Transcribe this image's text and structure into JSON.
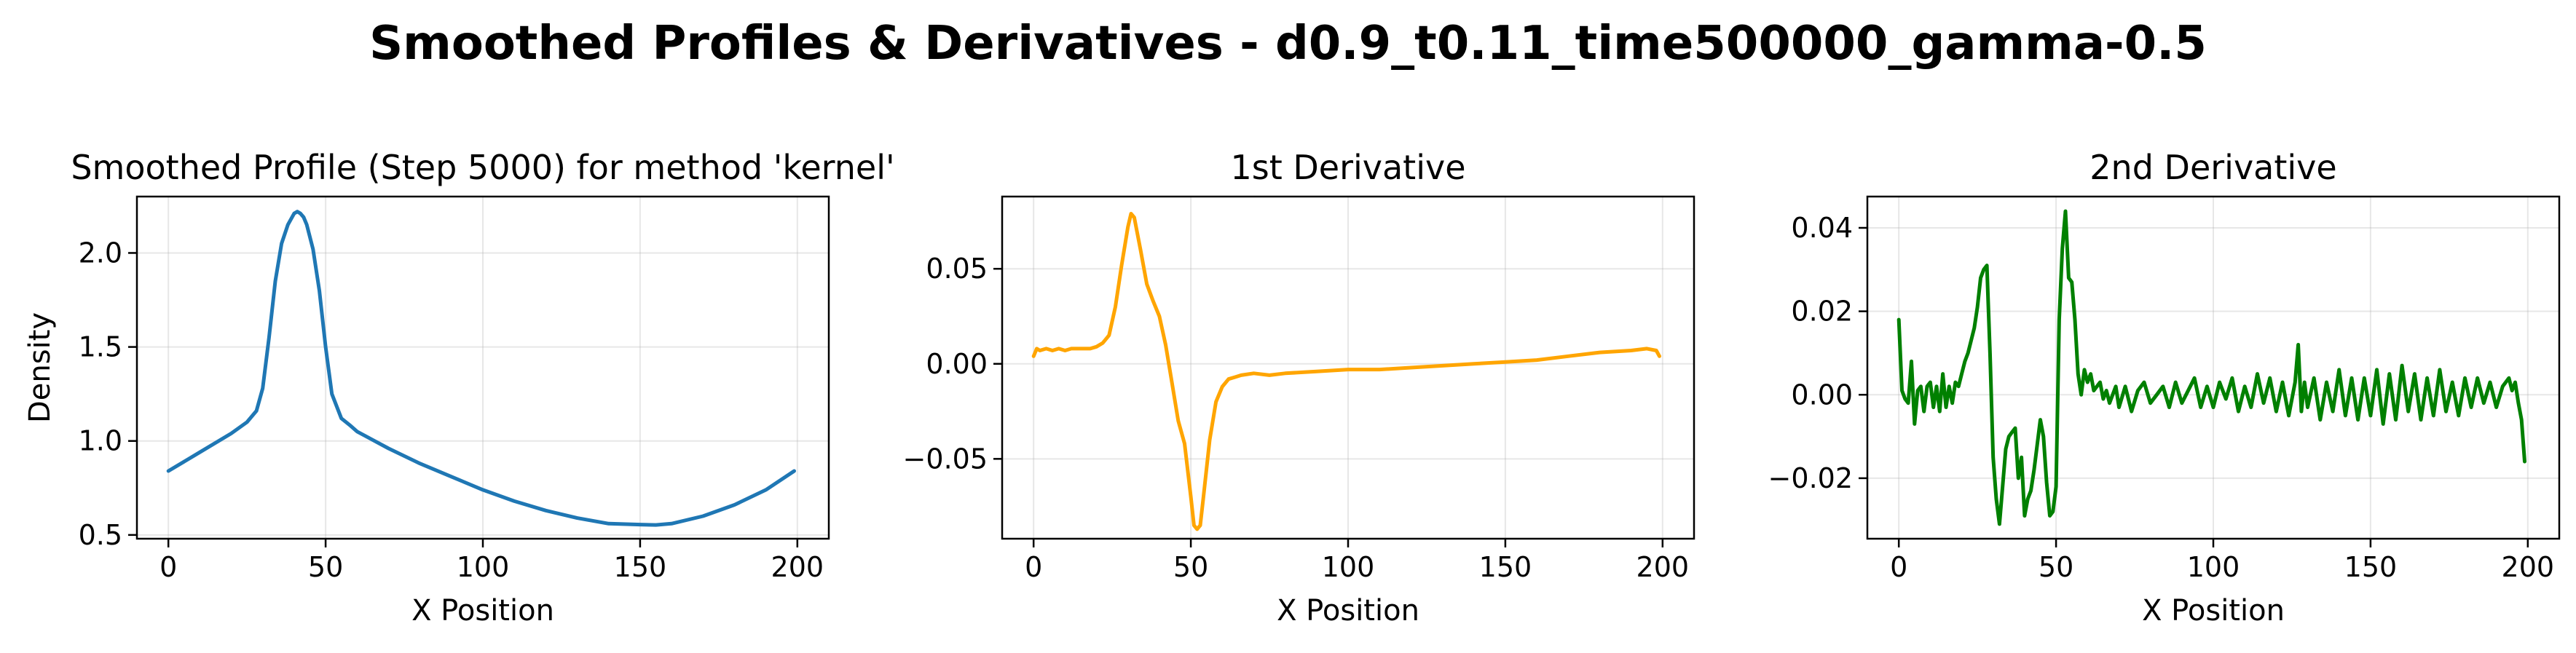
{
  "figure": {
    "title": "Smoothed Profiles & Derivatives - d0.9_t0.11_time500000_gamma-0.5"
  },
  "chart_data": [
    {
      "type": "line",
      "title": "Smoothed Profile (Step 5000) for method 'kernel'",
      "xlabel": "X Position",
      "ylabel": "Density",
      "xlim": [
        -10,
        210
      ],
      "ylim": [
        0.48,
        2.3
      ],
      "xticks": [
        0,
        50,
        100,
        150,
        200
      ],
      "xtick_labels": [
        "0",
        "50",
        "100",
        "150",
        "200"
      ],
      "yticks": [
        0.5,
        1.0,
        1.5,
        2.0
      ],
      "ytick_labels": [
        "0.5",
        "1.0",
        "1.5",
        "2.0"
      ],
      "grid": true,
      "color": "#1f77b4",
      "x": [
        0,
        10,
        20,
        25,
        28,
        30,
        32,
        34,
        36,
        38,
        40,
        41,
        42,
        43,
        44,
        46,
        48,
        50,
        52,
        55,
        58,
        60,
        70,
        80,
        90,
        100,
        110,
        120,
        130,
        140,
        150,
        155,
        160,
        170,
        180,
        190,
        199
      ],
      "y": [
        0.84,
        0.94,
        1.04,
        1.1,
        1.16,
        1.28,
        1.55,
        1.85,
        2.05,
        2.15,
        2.21,
        2.22,
        2.21,
        2.19,
        2.15,
        2.02,
        1.8,
        1.5,
        1.25,
        1.12,
        1.08,
        1.05,
        0.96,
        0.88,
        0.81,
        0.74,
        0.68,
        0.63,
        0.59,
        0.56,
        0.555,
        0.553,
        0.56,
        0.6,
        0.66,
        0.74,
        0.84
      ]
    },
    {
      "type": "line",
      "title": "1st Derivative",
      "xlabel": "X Position",
      "ylabel": "",
      "xlim": [
        -10,
        210
      ],
      "ylim": [
        -0.092,
        0.088
      ],
      "xticks": [
        0,
        50,
        100,
        150,
        200
      ],
      "xtick_labels": [
        "0",
        "50",
        "100",
        "150",
        "200"
      ],
      "yticks": [
        -0.05,
        0.0,
        0.05
      ],
      "ytick_labels": [
        "−0.05",
        "0.00",
        "0.05"
      ],
      "grid": true,
      "color": "#FFA500",
      "x": [
        0,
        1,
        2,
        4,
        6,
        8,
        10,
        12,
        14,
        16,
        18,
        20,
        22,
        24,
        26,
        28,
        30,
        31,
        32,
        34,
        36,
        38,
        40,
        42,
        44,
        46,
        48,
        50,
        51,
        52,
        53,
        54,
        56,
        58,
        60,
        62,
        64,
        66,
        70,
        75,
        80,
        90,
        100,
        110,
        120,
        130,
        140,
        150,
        160,
        170,
        180,
        190,
        195,
        198,
        199
      ],
      "y": [
        0.004,
        0.008,
        0.007,
        0.008,
        0.007,
        0.008,
        0.007,
        0.008,
        0.008,
        0.008,
        0.008,
        0.009,
        0.011,
        0.015,
        0.03,
        0.052,
        0.072,
        0.079,
        0.077,
        0.06,
        0.042,
        0.033,
        0.025,
        0.01,
        -0.01,
        -0.03,
        -0.042,
        -0.07,
        -0.085,
        -0.087,
        -0.085,
        -0.07,
        -0.04,
        -0.02,
        -0.012,
        -0.008,
        -0.007,
        -0.006,
        -0.005,
        -0.006,
        -0.005,
        -0.004,
        -0.003,
        -0.003,
        -0.002,
        -0.001,
        0.0,
        0.001,
        0.002,
        0.004,
        0.006,
        0.007,
        0.008,
        0.007,
        0.004
      ]
    },
    {
      "type": "line",
      "title": "2nd Derivative",
      "xlabel": "X Position",
      "ylabel": "",
      "xlim": [
        -10,
        210
      ],
      "ylim": [
        -0.0345,
        0.0475
      ],
      "xticks": [
        0,
        50,
        100,
        150,
        200
      ],
      "xtick_labels": [
        "0",
        "50",
        "100",
        "150",
        "200"
      ],
      "yticks": [
        -0.02,
        0.0,
        0.02,
        0.04
      ],
      "ytick_labels": [
        "−0.02",
        "0.00",
        "0.02",
        "0.04"
      ],
      "grid": true,
      "color": "#008000",
      "x": [
        0,
        1,
        2,
        3,
        4,
        5,
        6,
        7,
        8,
        9,
        10,
        11,
        12,
        13,
        14,
        15,
        16,
        17,
        18,
        19,
        20,
        21,
        22,
        23,
        24,
        25,
        26,
        27,
        28,
        29,
        30,
        31,
        32,
        33,
        34,
        35,
        36,
        37,
        38,
        39,
        40,
        41,
        42,
        43,
        44,
        45,
        46,
        47,
        48,
        49,
        50,
        51,
        52,
        53,
        54,
        55,
        56,
        57,
        58,
        59,
        60,
        61,
        62,
        63,
        64,
        65,
        66,
        67,
        68,
        69,
        70,
        72,
        74,
        76,
        78,
        80,
        82,
        84,
        86,
        88,
        90,
        92,
        94,
        96,
        98,
        100,
        102,
        104,
        106,
        108,
        110,
        112,
        114,
        116,
        118,
        120,
        122,
        124,
        126,
        127,
        128,
        129,
        130,
        132,
        134,
        136,
        138,
        140,
        142,
        144,
        146,
        148,
        150,
        152,
        154,
        156,
        158,
        160,
        162,
        164,
        166,
        168,
        170,
        172,
        174,
        176,
        178,
        180,
        182,
        184,
        186,
        188,
        190,
        192,
        194,
        195,
        196,
        197,
        198,
        199
      ],
      "y": [
        0.018,
        0.001,
        -0.001,
        -0.002,
        0.008,
        -0.007,
        0.001,
        0.002,
        -0.004,
        0.002,
        0.003,
        -0.003,
        0.002,
        -0.004,
        0.005,
        -0.003,
        0.002,
        -0.002,
        0.003,
        0.002,
        0.005,
        0.008,
        0.01,
        0.013,
        0.016,
        0.021,
        0.028,
        0.03,
        0.031,
        0.01,
        -0.015,
        -0.025,
        -0.031,
        -0.022,
        -0.013,
        -0.01,
        -0.009,
        -0.008,
        -0.02,
        -0.015,
        -0.029,
        -0.025,
        -0.023,
        -0.018,
        -0.012,
        -0.006,
        -0.01,
        -0.021,
        -0.029,
        -0.028,
        -0.022,
        0.018,
        0.035,
        0.044,
        0.028,
        0.027,
        0.018,
        0.005,
        0.0,
        0.006,
        0.003,
        0.005,
        0.001,
        0.002,
        0.003,
        -0.001,
        0.001,
        -0.002,
        0.0,
        0.002,
        -0.003,
        0.002,
        -0.004,
        0.001,
        0.003,
        -0.002,
        0.0,
        0.002,
        -0.003,
        0.003,
        -0.002,
        0.001,
        0.004,
        -0.003,
        0.002,
        -0.003,
        0.003,
        -0.001,
        0.004,
        -0.004,
        0.002,
        -0.003,
        0.005,
        -0.002,
        0.004,
        -0.004,
        0.003,
        -0.005,
        0.003,
        0.012,
        -0.004,
        0.003,
        -0.003,
        0.004,
        -0.006,
        0.003,
        -0.004,
        0.006,
        -0.005,
        0.004,
        -0.006,
        0.004,
        -0.005,
        0.006,
        -0.007,
        0.005,
        -0.006,
        0.007,
        -0.004,
        0.005,
        -0.006,
        0.004,
        -0.005,
        0.006,
        -0.004,
        0.003,
        -0.005,
        0.004,
        -0.003,
        0.004,
        -0.002,
        0.003,
        -0.003,
        0.002,
        0.004,
        0.001,
        0.003,
        -0.002,
        -0.006,
        -0.016
      ]
    }
  ]
}
